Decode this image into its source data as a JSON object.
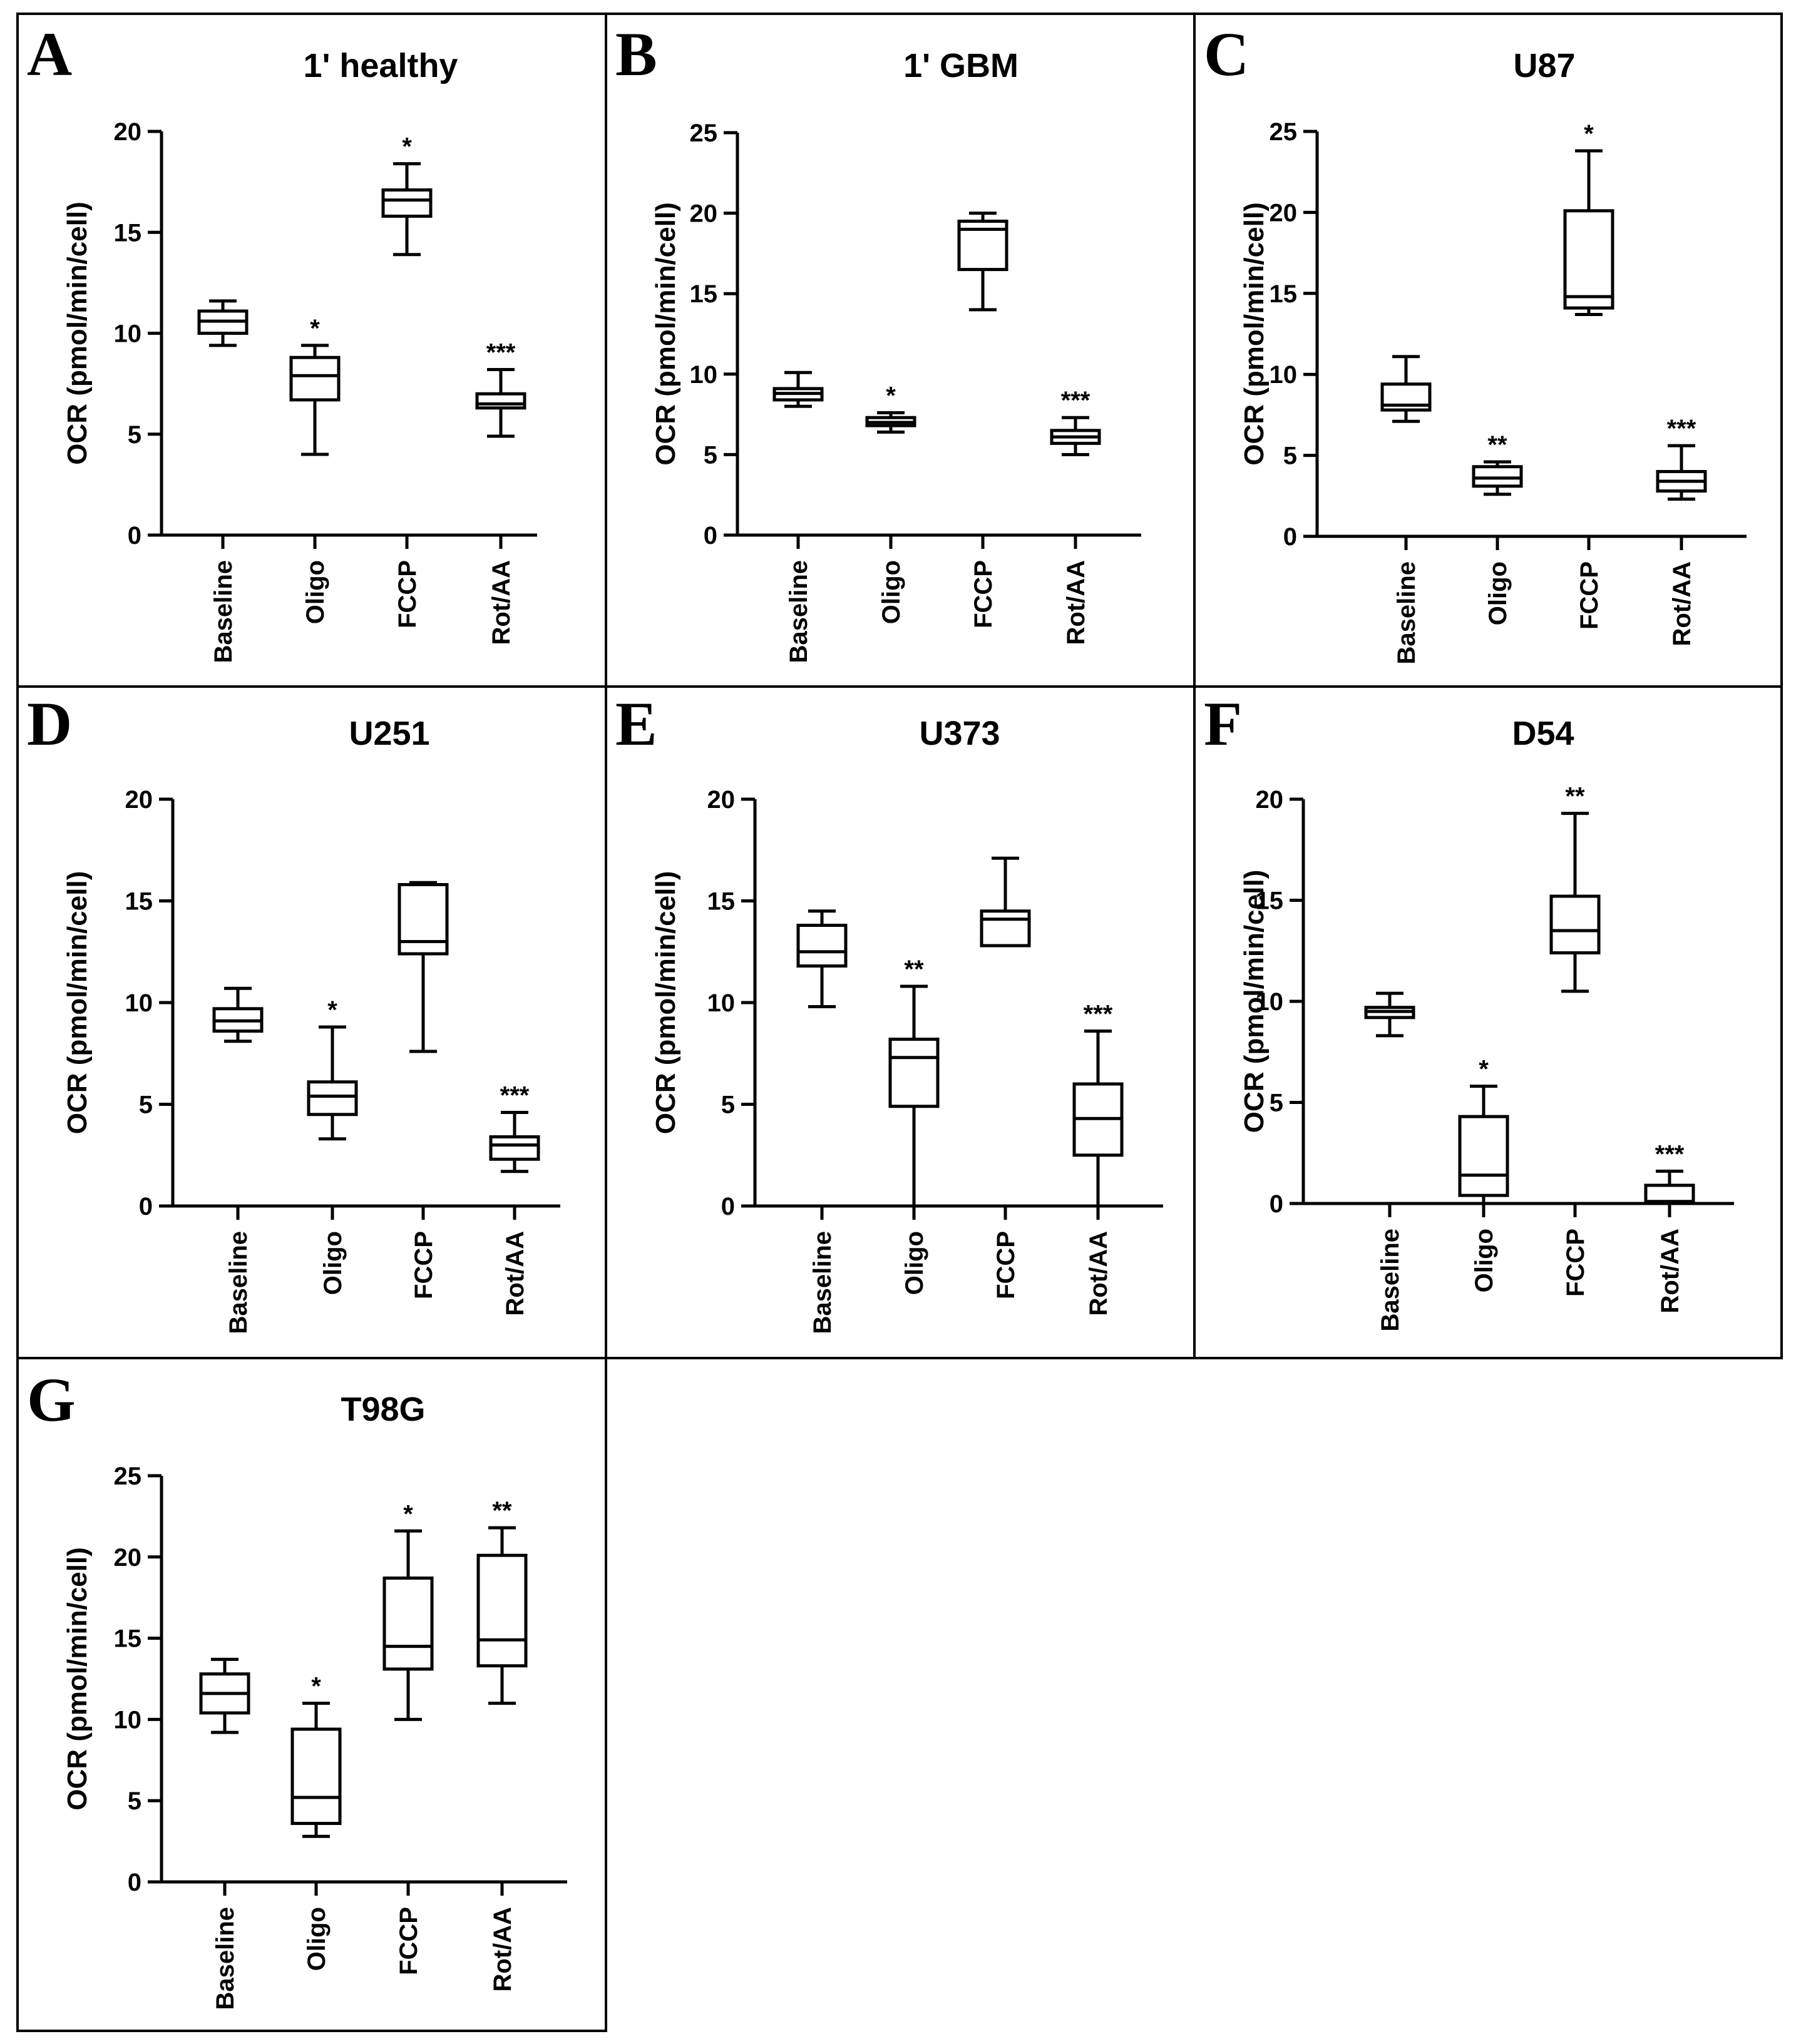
{
  "chart_data": [
    {
      "type": "box",
      "letter": "A",
      "title": "1' healthy",
      "ylabel": "OCR (pmol/min/cell)",
      "ylim": [
        0,
        20
      ],
      "yticks": [
        0,
        5,
        10,
        15,
        20
      ],
      "categories": [
        "Baseline",
        "Oligo",
        "FCCP",
        "Rot/AA"
      ],
      "boxes": [
        {
          "min": 9.4,
          "q1": 10.0,
          "median": 10.6,
          "q3": 11.1,
          "max": 11.6,
          "sig": ""
        },
        {
          "min": 4.0,
          "q1": 6.7,
          "median": 7.9,
          "q3": 8.8,
          "max": 9.4,
          "sig": "*"
        },
        {
          "min": 13.9,
          "q1": 15.8,
          "median": 16.6,
          "q3": 17.1,
          "max": 18.4,
          "sig": "*"
        },
        {
          "min": 4.9,
          "q1": 6.3,
          "median": 6.5,
          "q3": 7.0,
          "max": 8.2,
          "sig": "***"
        }
      ]
    },
    {
      "type": "box",
      "letter": "B",
      "title": "1' GBM",
      "ylabel": "OCR (pmol/min/cell)",
      "ylim": [
        0,
        25
      ],
      "yticks": [
        0,
        5,
        10,
        15,
        20,
        25
      ],
      "categories": [
        "Baseline",
        "Oligo",
        "FCCP",
        "Rot/AA"
      ],
      "boxes": [
        {
          "min": 8.0,
          "q1": 8.4,
          "median": 8.8,
          "q3": 9.1,
          "max": 10.1,
          "sig": ""
        },
        {
          "min": 6.4,
          "q1": 6.8,
          "median": 7.0,
          "q3": 7.3,
          "max": 7.6,
          "sig": "*"
        },
        {
          "min": 14.0,
          "q1": 16.5,
          "median": 19.0,
          "q3": 19.5,
          "max": 20.0,
          "sig": ""
        },
        {
          "min": 5.0,
          "q1": 5.7,
          "median": 6.1,
          "q3": 6.5,
          "max": 7.3,
          "sig": "***"
        }
      ]
    },
    {
      "type": "box",
      "letter": "C",
      "title": "U87",
      "ylabel": "OCR (pmol/min/cell)",
      "ylim": [
        0,
        25
      ],
      "yticks": [
        0,
        5,
        10,
        15,
        20,
        25
      ],
      "categories": [
        "Baseline",
        "Oligo",
        "FCCP",
        "Rot/AA"
      ],
      "boxes": [
        {
          "min": 7.1,
          "q1": 7.8,
          "median": 8.1,
          "q3": 9.4,
          "max": 11.1,
          "sig": ""
        },
        {
          "min": 2.6,
          "q1": 3.1,
          "median": 3.6,
          "q3": 4.3,
          "max": 4.6,
          "sig": "**"
        },
        {
          "min": 13.7,
          "q1": 14.1,
          "median": 14.8,
          "q3": 20.1,
          "max": 23.8,
          "sig": "*"
        },
        {
          "min": 2.3,
          "q1": 2.8,
          "median": 3.4,
          "q3": 4.0,
          "max": 5.6,
          "sig": "***"
        }
      ]
    },
    {
      "type": "box",
      "letter": "D",
      "title": "U251",
      "ylabel": "OCR (pmol/min/cell)",
      "ylim": [
        0,
        20
      ],
      "yticks": [
        0,
        5,
        10,
        15,
        20
      ],
      "categories": [
        "Baseline",
        "Oligo",
        "FCCP",
        "Rot/AA"
      ],
      "boxes": [
        {
          "min": 8.1,
          "q1": 8.6,
          "median": 9.1,
          "q3": 9.7,
          "max": 10.7,
          "sig": ""
        },
        {
          "min": 3.3,
          "q1": 4.5,
          "median": 5.4,
          "q3": 6.1,
          "max": 8.8,
          "sig": "*"
        },
        {
          "min": 7.6,
          "q1": 12.4,
          "median": 13.0,
          "q3": 15.8,
          "max": 15.9,
          "sig": ""
        },
        {
          "min": 1.7,
          "q1": 2.3,
          "median": 3.0,
          "q3": 3.4,
          "max": 4.6,
          "sig": "***"
        }
      ]
    },
    {
      "type": "box",
      "letter": "E",
      "title": "U373",
      "ylabel": "OCR (pmol/min/cell)",
      "ylim": [
        0,
        20
      ],
      "yticks": [
        0,
        5,
        10,
        15,
        20
      ],
      "categories": [
        "Baseline",
        "Oligo",
        "FCCP",
        "Rot/AA"
      ],
      "boxes": [
        {
          "min": 9.8,
          "q1": 11.8,
          "median": 12.5,
          "q3": 13.8,
          "max": 14.5,
          "sig": ""
        },
        {
          "min": 0.0,
          "q1": 4.9,
          "median": 7.3,
          "q3": 8.2,
          "max": 10.8,
          "sig": "**"
        },
        {
          "min": 12.8,
          "q1": 12.8,
          "median": 14.1,
          "q3": 14.5,
          "max": 17.1,
          "sig": ""
        },
        {
          "min": 0.0,
          "q1": 2.5,
          "median": 4.3,
          "q3": 6.0,
          "max": 8.6,
          "sig": "***"
        }
      ]
    },
    {
      "type": "box",
      "letter": "F",
      "title": "D54",
      "ylabel": "OCR (pmol/min/cell)",
      "ylim": [
        0,
        20
      ],
      "yticks": [
        0,
        5,
        10,
        15,
        20
      ],
      "categories": [
        "Baseline",
        "Oligo",
        "FCCP",
        "Rot/AA"
      ],
      "boxes": [
        {
          "min": 8.3,
          "q1": 9.2,
          "median": 9.5,
          "q3": 9.7,
          "max": 10.4,
          "sig": ""
        },
        {
          "min": 0.0,
          "q1": 0.4,
          "median": 1.4,
          "q3": 4.3,
          "max": 5.8,
          "sig": "*"
        },
        {
          "min": 10.5,
          "q1": 12.4,
          "median": 13.5,
          "q3": 15.2,
          "max": 19.3,
          "sig": "**"
        },
        {
          "min": 0.0,
          "q1": 0.0,
          "median": 0.1,
          "q3": 0.9,
          "max": 1.6,
          "sig": "***"
        }
      ]
    },
    {
      "type": "box",
      "letter": "G",
      "title": "T98G",
      "ylabel": "OCR (pmol/min/cell)",
      "ylim": [
        0,
        25
      ],
      "yticks": [
        0,
        5,
        10,
        15,
        20,
        25
      ],
      "categories": [
        "Baseline",
        "Oligo",
        "FCCP",
        "Rot/AA"
      ],
      "boxes": [
        {
          "min": 9.2,
          "q1": 10.4,
          "median": 11.6,
          "q3": 12.8,
          "max": 13.7,
          "sig": ""
        },
        {
          "min": 2.8,
          "q1": 3.6,
          "median": 5.2,
          "q3": 9.4,
          "max": 11.0,
          "sig": "*"
        },
        {
          "min": 10.0,
          "q1": 13.1,
          "median": 14.5,
          "q3": 18.7,
          "max": 21.6,
          "sig": "*"
        },
        {
          "min": 11.0,
          "q1": 13.3,
          "median": 14.9,
          "q3": 20.1,
          "max": 21.8,
          "sig": "**"
        }
      ]
    }
  ]
}
